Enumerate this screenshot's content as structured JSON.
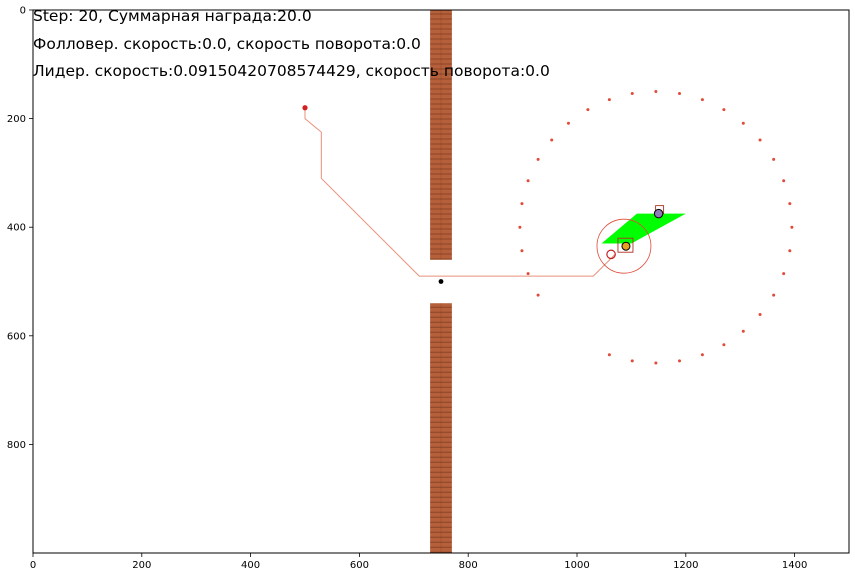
{
  "hud": {
    "line1": "Step: 20, Суммарная награда:20.0",
    "line2": "Фолловер. скорость:0.0, скорость поворота:0.0",
    "line3": "Лидер. скорость:0.09150420708574429, скорость поворота:0.0"
  },
  "axes": {
    "x_ticks": [
      "0",
      "200",
      "400",
      "600",
      "800",
      "1000",
      "1200",
      "1400"
    ],
    "y_ticks": [
      "0",
      "200",
      "400",
      "600",
      "800"
    ],
    "xlim": [
      0,
      1500
    ],
    "ylim": [
      1000,
      0
    ]
  },
  "colors": {
    "wall": "#b5603a",
    "wall_dark": "#6b2f1a",
    "path": "#e8907a",
    "waypoint": "#e04a3a",
    "sensor": "#00ff00",
    "start": "#d42020"
  },
  "scene": {
    "walls": [
      {
        "x0": 730,
        "x1": 770,
        "y0": 0,
        "y1": 460
      },
      {
        "x0": 730,
        "x1": 770,
        "y0": 540,
        "y1": 1000
      }
    ],
    "gate_point": {
      "x": 750,
      "y": 500
    },
    "start_point": {
      "x": 500,
      "y": 180
    },
    "leader_path": [
      {
        "x": 500,
        "y": 180
      },
      {
        "x": 500,
        "y": 200
      },
      {
        "x": 530,
        "y": 225
      },
      {
        "x": 530,
        "y": 310
      },
      {
        "x": 710,
        "y": 490
      },
      {
        "x": 1030,
        "y": 490
      },
      {
        "x": 1070,
        "y": 450
      }
    ],
    "waypoint_circle": {
      "cx": 1145,
      "cy": 400,
      "r": 250,
      "count": 36,
      "gap_from_deg": 110,
      "gap_to_deg": 145
    },
    "follower": {
      "x": 1090,
      "y": 435
    },
    "leader": {
      "x": 1150,
      "y": 375
    },
    "target": {
      "x": 1070,
      "y": 450
    },
    "follower_radius": 50,
    "sensor_polygon": [
      {
        "x": 1045,
        "y": 430
      },
      {
        "x": 1100,
        "y": 430
      },
      {
        "x": 1200,
        "y": 375
      },
      {
        "x": 1110,
        "y": 375
      }
    ]
  }
}
